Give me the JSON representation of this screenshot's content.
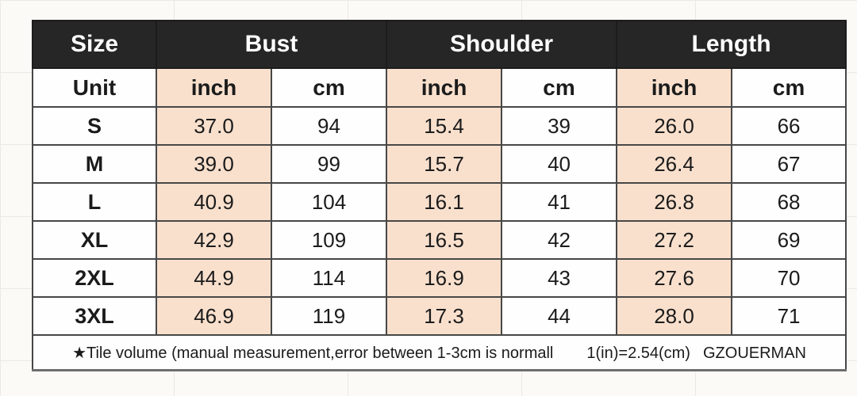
{
  "table": {
    "header": {
      "size": "Size",
      "groups": [
        "Bust",
        "Shoulder",
        "Length"
      ]
    },
    "unit_row": {
      "label": "Unit",
      "units": [
        "inch",
        "cm",
        "inch",
        "cm",
        "inch",
        "cm"
      ]
    },
    "rows": [
      {
        "size": "S",
        "values": [
          "37.0",
          "94",
          "15.4",
          "39",
          "26.0",
          "66"
        ]
      },
      {
        "size": "M",
        "values": [
          "39.0",
          "99",
          "15.7",
          "40",
          "26.4",
          "67"
        ]
      },
      {
        "size": "L",
        "values": [
          "40.9",
          "104",
          "16.1",
          "41",
          "26.8",
          "68"
        ]
      },
      {
        "size": "XL",
        "values": [
          "42.9",
          "109",
          "16.5",
          "42",
          "27.2",
          "69"
        ]
      },
      {
        "size": "2XL",
        "values": [
          "44.9",
          "114",
          "16.9",
          "43",
          "27.6",
          "70"
        ]
      },
      {
        "size": "3XL",
        "values": [
          "46.9",
          "119",
          "17.3",
          "44",
          "28.0",
          "71"
        ]
      }
    ],
    "footer": {
      "star": "★",
      "note": "Tile volume (manual measurement,error between 1-3cm is normall",
      "formula": "1(in)=2.54(cm)",
      "brand": "GZOUERMAN"
    },
    "colors": {
      "header_bg": "#262626",
      "header_text": "#ffffff",
      "inch_column_bg": "#f9e0cd",
      "cell_bg": "#fefefe",
      "border": "#474747"
    }
  }
}
